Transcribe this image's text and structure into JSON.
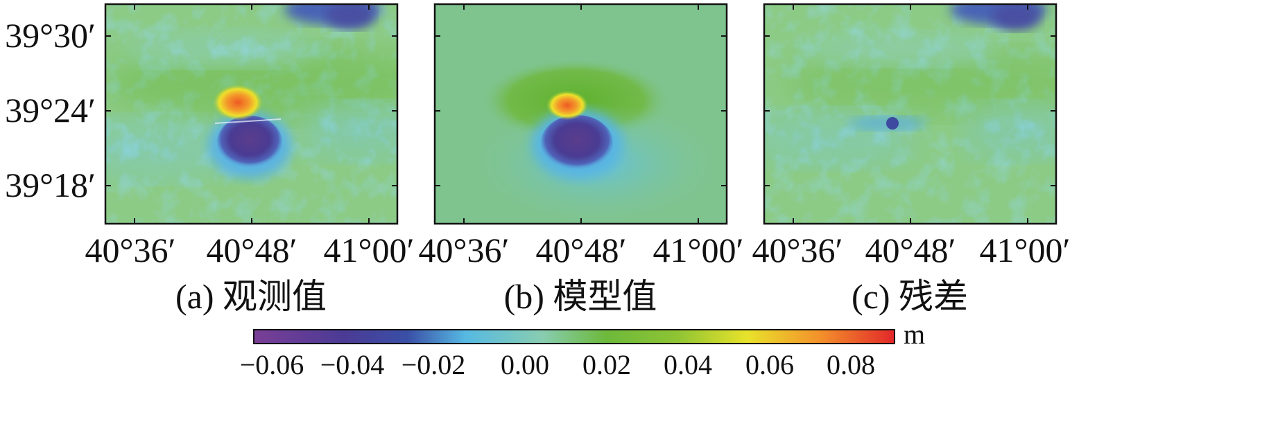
{
  "panels": [
    {
      "id": "a",
      "caption": "(a) 观测值",
      "variant": "observed",
      "x_ticks": [
        "40°36′",
        "40°48′",
        "41°00′"
      ],
      "y_ticks": [
        "39°30′",
        "39°24′",
        "39°18′"
      ]
    },
    {
      "id": "b",
      "caption": "(b) 模型值",
      "variant": "model",
      "x_ticks": [
        "40°36′",
        "40°48′",
        "41°00′"
      ],
      "y_ticks": []
    },
    {
      "id": "c",
      "caption": "(c) 残差",
      "variant": "residual",
      "x_ticks": [
        "40°36′",
        "40°48′",
        "41°00′"
      ],
      "y_ticks": []
    }
  ],
  "colorbar": {
    "unit": "m",
    "ticks": [
      "−0.06",
      "−0.04",
      "−0.02",
      "0.00",
      "0.02",
      "0.04",
      "0.06",
      "0.08"
    ],
    "colors": [
      "#6b3c93",
      "#4a3a93",
      "#55b3e0",
      "#7fc7a6",
      "#64b52a",
      "#a9cc36",
      "#f2e32a",
      "#f39a2b",
      "#e8322a"
    ]
  }
}
